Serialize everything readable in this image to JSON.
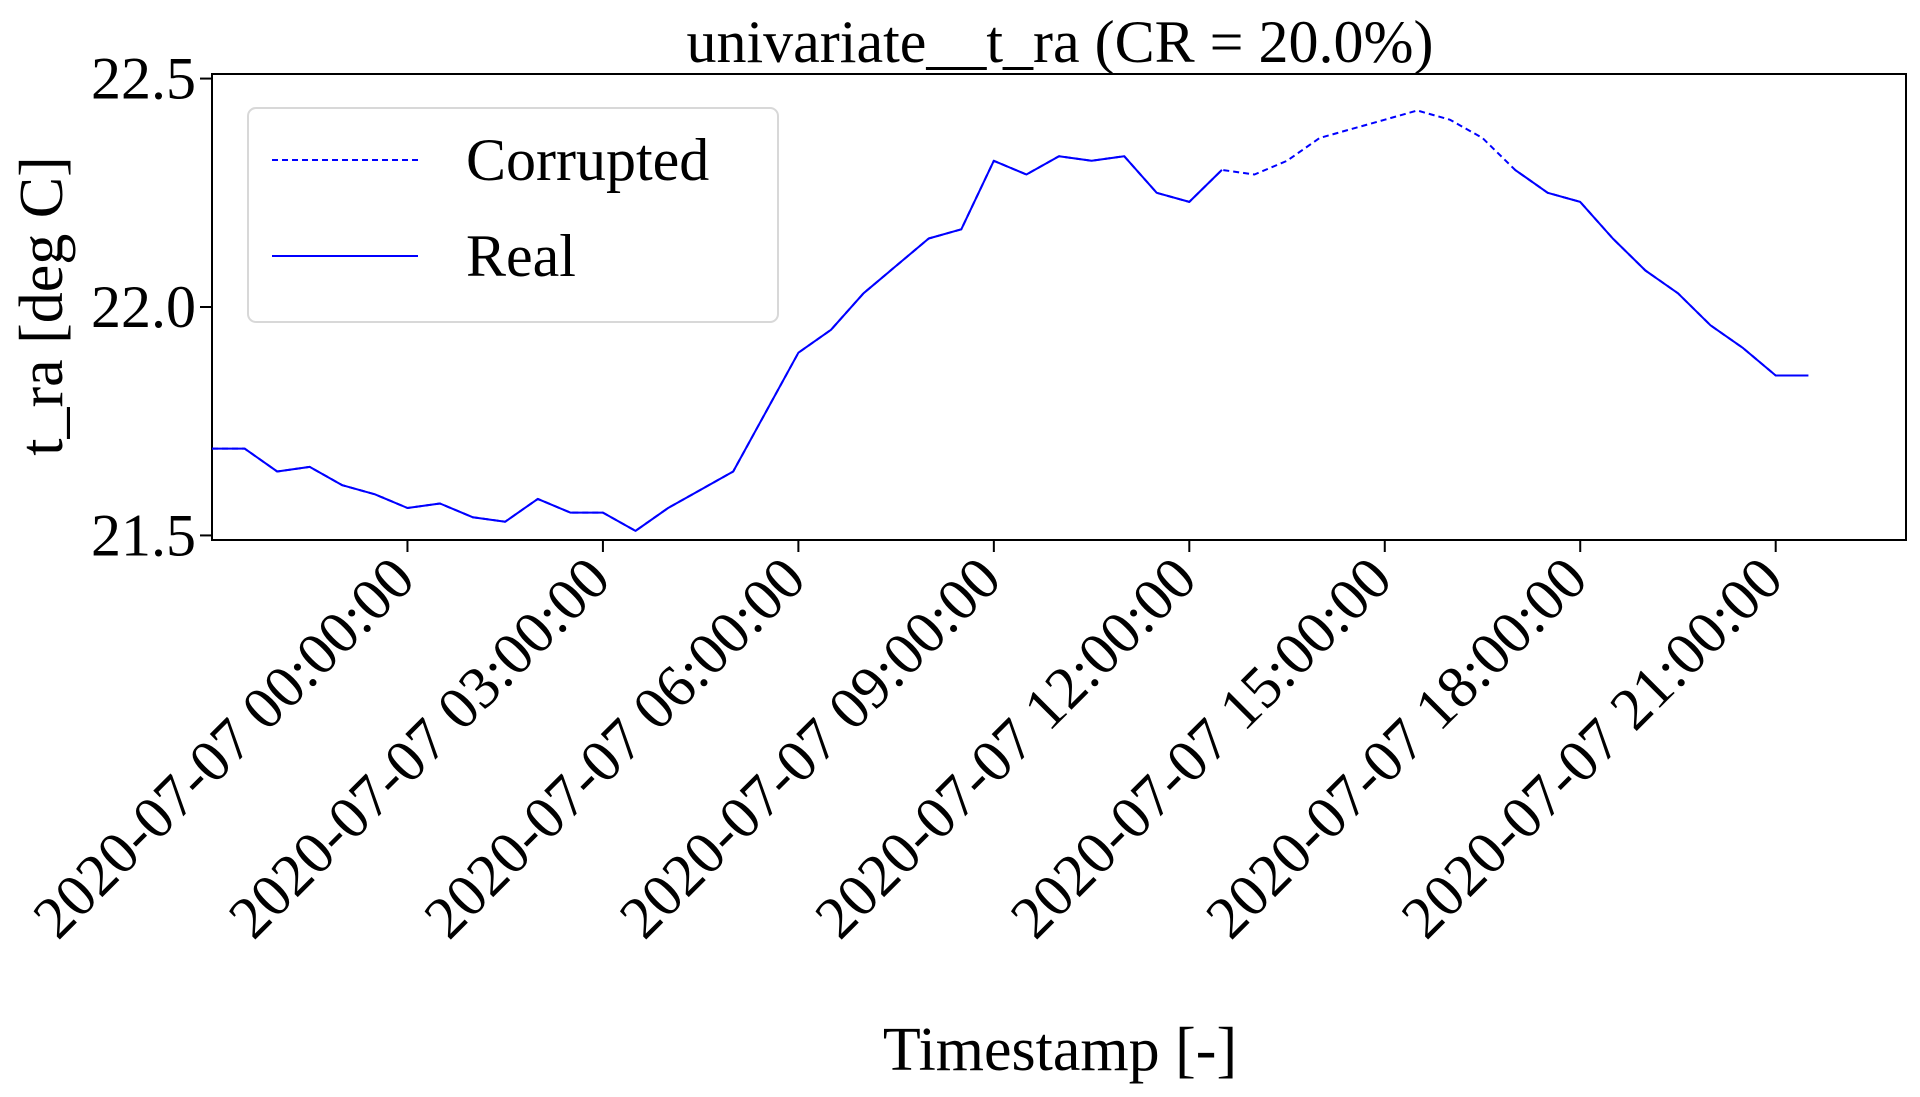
{
  "chart_data": {
    "type": "line",
    "title": "univariate__t_ra  (CR = 20.0%)",
    "xlabel": "Timestamp [-]",
    "ylabel": "t_ra  [deg C]",
    "x_type": "datetime",
    "x_start": "2020-07-06 21:00:00",
    "x_step_minutes": 30,
    "xlim": [
      "2020-07-06 21:00:00",
      "2020-07-07 23:00:00"
    ],
    "ylim": [
      21.49,
      22.51
    ],
    "x_ticks": [
      "2020-07-07 00:00:00",
      "2020-07-07 03:00:00",
      "2020-07-07 06:00:00",
      "2020-07-07 09:00:00",
      "2020-07-07 12:00:00",
      "2020-07-07 15:00:00",
      "2020-07-07 18:00:00",
      "2020-07-07 21:00:00"
    ],
    "y_ticks": [
      "21.5",
      "22.0",
      "22.5"
    ],
    "y_tick_values": [
      21.5,
      22.0,
      22.5
    ],
    "grid": false,
    "legend_position": "top-left",
    "series": [
      {
        "name": "Corrupted",
        "style": "dashed",
        "color": "#0000ff",
        "values": [
          21.69,
          21.69,
          21.64,
          21.65,
          21.61,
          21.59,
          21.56,
          21.57,
          21.54,
          21.53,
          21.58,
          21.55,
          21.55,
          21.51,
          21.56,
          21.6,
          21.64,
          21.77,
          21.9,
          21.95,
          22.03,
          22.09,
          22.15,
          22.17,
          22.32,
          22.29,
          22.33,
          22.32,
          22.33,
          22.25,
          22.23,
          22.3,
          22.29,
          22.32,
          22.37,
          22.39,
          22.41,
          22.43,
          22.41,
          22.37,
          22.3,
          22.25,
          22.23,
          22.15,
          22.08,
          22.03,
          21.96,
          21.91,
          21.85,
          21.85
        ]
      },
      {
        "name": "Real",
        "style": "solid",
        "color": "#0000ff",
        "values": [
          21.69,
          21.69,
          21.64,
          21.65,
          21.61,
          21.59,
          21.56,
          21.57,
          21.54,
          21.53,
          21.58,
          21.55,
          21.55,
          21.51,
          21.56,
          21.6,
          21.64,
          21.77,
          21.9,
          21.95,
          22.03,
          22.09,
          22.15,
          22.17,
          22.32,
          22.29,
          22.33,
          22.32,
          22.33,
          22.25,
          22.23,
          22.3,
          null,
          null,
          null,
          null,
          null,
          null,
          null,
          null,
          22.3,
          22.25,
          22.23,
          22.15,
          22.08,
          22.03,
          21.96,
          21.91,
          21.85,
          21.85
        ]
      }
    ]
  }
}
